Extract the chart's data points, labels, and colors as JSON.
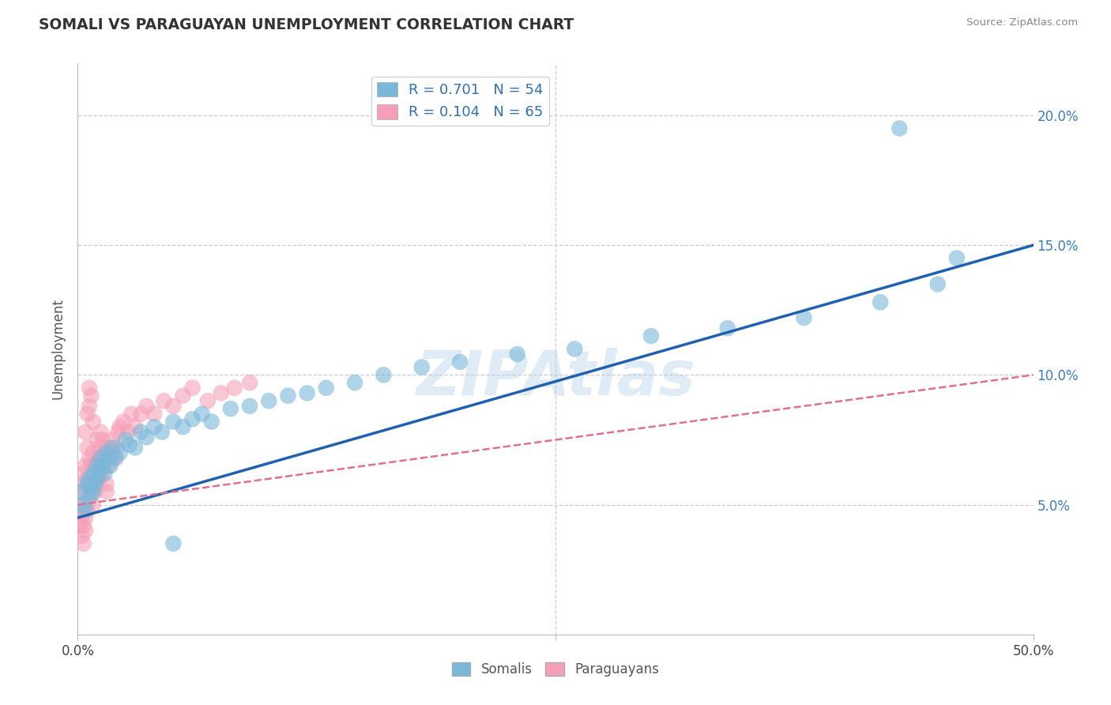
{
  "title": "SOMALI VS PARAGUAYAN UNEMPLOYMENT CORRELATION CHART",
  "source_text": "Source: ZipAtlas.com",
  "ylabel": "Unemployment",
  "xlim": [
    0.0,
    0.5
  ],
  "ylim": [
    0.0,
    0.22
  ],
  "somali_color": "#7ab8d9",
  "paraguayan_color": "#f5a0b8",
  "somali_R": 0.701,
  "somali_N": 54,
  "paraguayan_R": 0.104,
  "paraguayan_N": 65,
  "trend_somali_color": "#2060b0",
  "trend_paraguayan_color": "#e07090",
  "somali_trend_x0": 0.0,
  "somali_trend_y0": 0.045,
  "somali_trend_x1": 0.5,
  "somali_trend_y1": 0.15,
  "parag_trend_x0": 0.0,
  "parag_trend_y0": 0.05,
  "parag_trend_x1": 0.5,
  "parag_trend_y1": 0.1,
  "somali_x": [
    0.002,
    0.003,
    0.004,
    0.005,
    0.006,
    0.006,
    0.007,
    0.008,
    0.008,
    0.009,
    0.01,
    0.01,
    0.011,
    0.012,
    0.013,
    0.014,
    0.015,
    0.016,
    0.017,
    0.018,
    0.02,
    0.022,
    0.025,
    0.027,
    0.03,
    0.033,
    0.036,
    0.04,
    0.044,
    0.05,
    0.055,
    0.06,
    0.065,
    0.07,
    0.08,
    0.09,
    0.1,
    0.11,
    0.12,
    0.13,
    0.145,
    0.16,
    0.18,
    0.2,
    0.23,
    0.26,
    0.3,
    0.34,
    0.38,
    0.42,
    0.45,
    0.46,
    0.05,
    0.43
  ],
  "somali_y": [
    0.055,
    0.05,
    0.048,
    0.058,
    0.053,
    0.06,
    0.057,
    0.055,
    0.062,
    0.058,
    0.06,
    0.065,
    0.063,
    0.068,
    0.065,
    0.062,
    0.07,
    0.068,
    0.065,
    0.072,
    0.068,
    0.07,
    0.075,
    0.073,
    0.072,
    0.078,
    0.076,
    0.08,
    0.078,
    0.082,
    0.08,
    0.083,
    0.085,
    0.082,
    0.087,
    0.088,
    0.09,
    0.092,
    0.093,
    0.095,
    0.097,
    0.1,
    0.103,
    0.105,
    0.108,
    0.11,
    0.115,
    0.118,
    0.122,
    0.128,
    0.135,
    0.145,
    0.035,
    0.195
  ],
  "parag_x": [
    0.001,
    0.001,
    0.002,
    0.002,
    0.003,
    0.003,
    0.004,
    0.004,
    0.005,
    0.005,
    0.005,
    0.006,
    0.006,
    0.007,
    0.007,
    0.008,
    0.008,
    0.009,
    0.009,
    0.01,
    0.01,
    0.011,
    0.011,
    0.012,
    0.012,
    0.013,
    0.013,
    0.014,
    0.015,
    0.015,
    0.016,
    0.017,
    0.018,
    0.019,
    0.02,
    0.021,
    0.022,
    0.024,
    0.026,
    0.028,
    0.03,
    0.033,
    0.036,
    0.04,
    0.045,
    0.05,
    0.055,
    0.06,
    0.068,
    0.075,
    0.082,
    0.09,
    0.004,
    0.003,
    0.006,
    0.007,
    0.005,
    0.002,
    0.003,
    0.004,
    0.006,
    0.008,
    0.01,
    0.012,
    0.015
  ],
  "parag_y": [
    0.042,
    0.055,
    0.045,
    0.058,
    0.05,
    0.062,
    0.045,
    0.065,
    0.048,
    0.06,
    0.072,
    0.052,
    0.068,
    0.055,
    0.065,
    0.05,
    0.07,
    0.055,
    0.065,
    0.058,
    0.075,
    0.06,
    0.068,
    0.062,
    0.072,
    0.065,
    0.075,
    0.068,
    0.058,
    0.072,
    0.065,
    0.07,
    0.075,
    0.068,
    0.072,
    0.078,
    0.08,
    0.082,
    0.078,
    0.085,
    0.08,
    0.085,
    0.088,
    0.085,
    0.09,
    0.088,
    0.092,
    0.095,
    0.09,
    0.093,
    0.095,
    0.097,
    0.04,
    0.035,
    0.088,
    0.092,
    0.085,
    0.038,
    0.042,
    0.078,
    0.095,
    0.082,
    0.06,
    0.078,
    0.055
  ]
}
